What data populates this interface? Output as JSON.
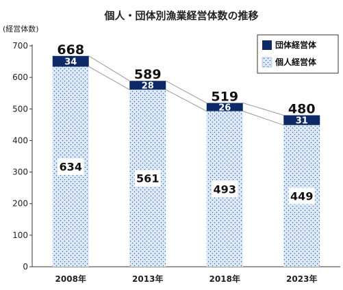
{
  "chart_data": {
    "type": "bar",
    "stacked": true,
    "title": "個人・団体別漁業経営体数の推移",
    "ylabel": "(経営体数)",
    "xlabel": "",
    "categories": [
      "2008年",
      "2013年",
      "2018年",
      "2023年"
    ],
    "ylim": [
      0,
      700
    ],
    "yticks": [
      0,
      100,
      200,
      300,
      400,
      500,
      600,
      700
    ],
    "series": [
      {
        "name": "個人経営体",
        "values": [
          634,
          561,
          493,
          449
        ],
        "color": "#dce8f7",
        "pattern": "dots"
      },
      {
        "name": "団体経営体",
        "values": [
          34,
          28,
          26,
          31
        ],
        "color": "#0d2a66"
      }
    ],
    "totals": [
      668,
      589,
      519,
      480
    ],
    "legend": {
      "position": "top-right",
      "order": [
        "団体経営体",
        "個人経営体"
      ]
    },
    "grid": false,
    "connector_lines": true
  }
}
